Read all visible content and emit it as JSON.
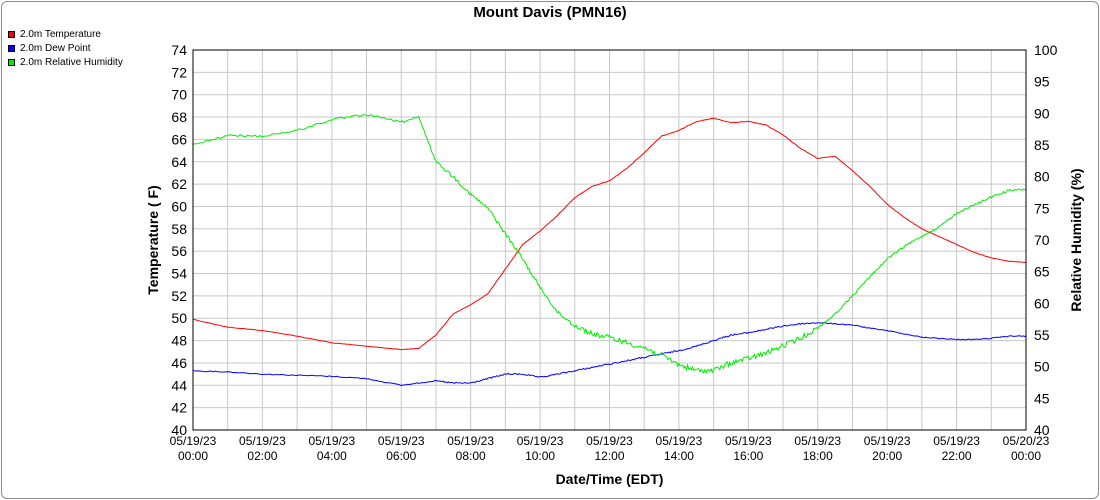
{
  "chart_data": {
    "type": "line",
    "title": "Mount Davis (PMN16)",
    "xlabel": "Date/Time (EDT)",
    "ylabel": "Temperature ( F)",
    "y2label": "Relative Humidity (%)",
    "ylim": [
      40,
      74
    ],
    "y2lim": [
      40,
      100
    ],
    "xlim": [
      "05/19/23 00:00",
      "05/20/23 00:00"
    ],
    "grid": true,
    "legend_position": "top-left",
    "yticks": [
      "40",
      "42",
      "44",
      "46",
      "48",
      "50",
      "52",
      "54",
      "56",
      "58",
      "60",
      "62",
      "64",
      "66",
      "68",
      "70",
      "72",
      "74"
    ],
    "y2ticks": [
      "40",
      "45",
      "50",
      "55",
      "60",
      "65",
      "70",
      "75",
      "80",
      "85",
      "90",
      "95",
      "100"
    ],
    "xticks": [
      {
        "date": "05/19/23",
        "time": "00:00"
      },
      {
        "date": "05/19/23",
        "time": "02:00"
      },
      {
        "date": "05/19/23",
        "time": "04:00"
      },
      {
        "date": "05/19/23",
        "time": "06:00"
      },
      {
        "date": "05/19/23",
        "time": "08:00"
      },
      {
        "date": "05/19/23",
        "time": "10:00"
      },
      {
        "date": "05/19/23",
        "time": "12:00"
      },
      {
        "date": "05/19/23",
        "time": "14:00"
      },
      {
        "date": "05/19/23",
        "time": "16:00"
      },
      {
        "date": "05/19/23",
        "time": "18:00"
      },
      {
        "date": "05/19/23",
        "time": "20:00"
      },
      {
        "date": "05/19/23",
        "time": "22:00"
      },
      {
        "date": "05/20/23",
        "time": "00:00"
      }
    ],
    "x": [
      "05/19/23 00:00",
      "05/19/23 01:00",
      "05/19/23 02:00",
      "05/19/23 03:00",
      "05/19/23 04:00",
      "05/19/23 05:00",
      "05/19/23 06:00",
      "05/19/23 06:30",
      "05/19/23 07:00",
      "05/19/23 07:30",
      "05/19/23 08:00",
      "05/19/23 08:30",
      "05/19/23 09:00",
      "05/19/23 09:30",
      "05/19/23 10:00",
      "05/19/23 10:30",
      "05/19/23 11:00",
      "05/19/23 11:30",
      "05/19/23 12:00",
      "05/19/23 12:30",
      "05/19/23 13:00",
      "05/19/23 13:30",
      "05/19/23 14:00",
      "05/19/23 14:30",
      "05/19/23 15:00",
      "05/19/23 15:30",
      "05/19/23 16:00",
      "05/19/23 16:30",
      "05/19/23 17:00",
      "05/19/23 17:30",
      "05/19/23 18:00",
      "05/19/23 18:30",
      "05/19/23 19:00",
      "05/19/23 19:30",
      "05/19/23 20:00",
      "05/19/23 20:30",
      "05/19/23 21:00",
      "05/19/23 21:30",
      "05/19/23 22:00",
      "05/19/23 22:30",
      "05/19/23 23:00",
      "05/19/23 23:30",
      "05/20/23 00:00"
    ],
    "series": [
      {
        "name": "2.0m Temperature",
        "color": "#ff0000",
        "axis": "left",
        "values": [
          49.9,
          49.2,
          48.9,
          48.4,
          47.8,
          47.5,
          47.2,
          47.3,
          48.5,
          50.4,
          51.2,
          52.2,
          54.4,
          56.6,
          57.8,
          59.2,
          60.8,
          61.8,
          62.3,
          63.4,
          64.8,
          66.3,
          66.8,
          67.6,
          67.9,
          67.5,
          67.6,
          67.3,
          66.4,
          65.2,
          64.3,
          64.5,
          63.2,
          61.8,
          60.2,
          59.0,
          58.0,
          57.3,
          56.6,
          55.9,
          55.4,
          55.1,
          55.0
        ]
      },
      {
        "name": "2.0m Dew Point",
        "color": "#0000ff",
        "axis": "left",
        "values": [
          45.3,
          45.2,
          45.0,
          44.9,
          44.8,
          44.6,
          44.0,
          44.2,
          44.4,
          44.2,
          44.2,
          44.6,
          45.0,
          45.0,
          44.7,
          45.0,
          45.3,
          45.6,
          45.9,
          46.2,
          46.5,
          46.8,
          47.1,
          47.5,
          48.0,
          48.5,
          48.7,
          49.0,
          49.3,
          49.5,
          49.6,
          49.5,
          49.4,
          49.1,
          48.9,
          48.6,
          48.3,
          48.2,
          48.1,
          48.1,
          48.2,
          48.4,
          48.4
        ]
      },
      {
        "name": "2.0m Relative Humidity",
        "color": "#00ee00",
        "axis": "right",
        "values": [
          85.0,
          86.5,
          86.4,
          87.3,
          89.0,
          89.8,
          88.6,
          89.4,
          82.4,
          80.0,
          77.2,
          75.0,
          71.0,
          67.0,
          62.5,
          58.6,
          56.5,
          55.2,
          54.6,
          53.8,
          53.0,
          51.8,
          50.3,
          49.4,
          49.4,
          50.6,
          51.3,
          52.1,
          53.3,
          54.5,
          56.1,
          58.3,
          61.2,
          64.2,
          67.0,
          69.0,
          70.6,
          72.1,
          74.2,
          75.5,
          76.8,
          77.8,
          78.0
        ]
      }
    ]
  }
}
